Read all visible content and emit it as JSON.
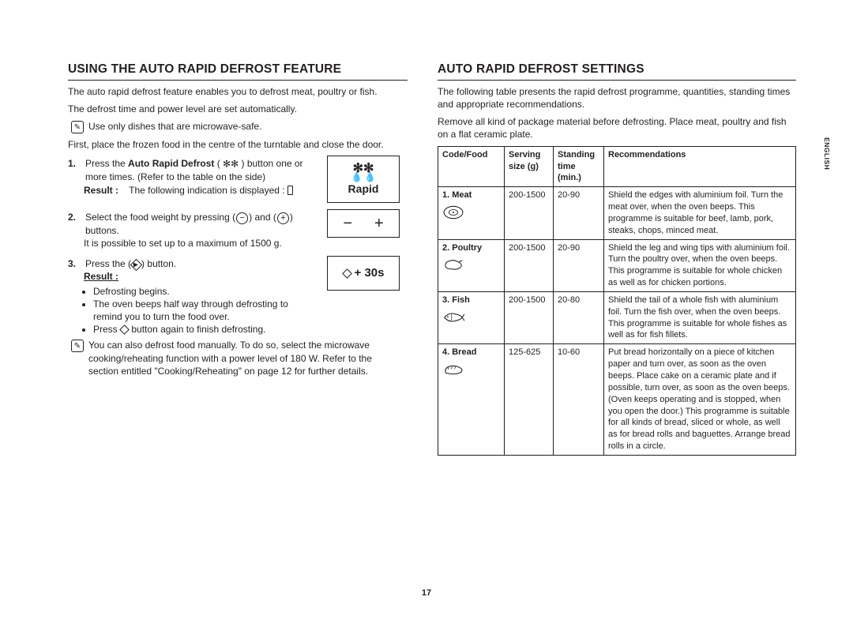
{
  "page_number": "17",
  "side_tab": "ENGLISH",
  "left": {
    "heading": "USING THE AUTO RAPID DEFROST FEATURE",
    "intro1": "The auto rapid defrost feature enables you to defrost meat, poultry or fish.",
    "intro2": "The defrost time and power level are set automatically.",
    "note1": "Use only dishes that are microwave-safe.",
    "intro3": "First, place the frozen food in the centre of the turntable and close the door.",
    "step1_a": "Press the ",
    "step1_bold": "Auto Rapid Defrost",
    "step1_b": " button one or more times. (Refer to the table on the side)",
    "result_label": "Result :",
    "step1_result": "The following indication is displayed :",
    "step2": "Select the food weight by pressing",
    "step2_and": "and",
    "step2_tail": "buttons.",
    "step2_note": "It is possible to set up to a maximum of 1500 g.",
    "step3_a": "Press the",
    "step3_b": "button.",
    "result_label2": "Result :",
    "bullets": [
      "Defrosting begins.",
      "The oven beeps half way through defrosting to remind you to turn the food over.",
      "Press"
    ],
    "bullet3_tail": "button again to finish defrosting.",
    "note2": "You can also defrost food manually. To do so, select the microwave cooking/reheating function with a power level of 180 W. Refer to the section entitled \"Cooking/Reheating\" on page 12 for further details.",
    "rapid_label": "Rapid",
    "plus30s": "+ 30s"
  },
  "right": {
    "heading": "AUTO RAPID DEFROST SETTINGS",
    "p1": "The following table presents the rapid defrost programme, quantities, standing times and appropriate recommendations.",
    "p2": "Remove all kind of package material before defrosting. Place meat, poultry and fish on a flat ceramic plate.",
    "table": {
      "headers": [
        "Code/Food",
        "Serving size (g)",
        "Standing time (min.)",
        "Recommendations"
      ],
      "rows": [
        {
          "code": "1. Meat",
          "icon": "meat",
          "serving": "200-1500",
          "standing": "20-90",
          "rec": "Shield the edges with aluminium foil. Turn the meat over, when the oven beeps. This programme is suitable for beef, lamb, pork, steaks, chops, minced meat."
        },
        {
          "code": "2. Poultry",
          "icon": "poultry",
          "serving": "200-1500",
          "standing": "20-90",
          "rec": "Shield the leg and wing tips with aluminium foil. Turn the poultry over, when the oven beeps. This programme is suitable for whole chicken as well as for chicken portions."
        },
        {
          "code": "3. Fish",
          "icon": "fish",
          "serving": "200-1500",
          "standing": "20-80",
          "rec": "Shield the tail of a whole fish with aluminium foil. Turn the fish over, when the oven beeps. This programme is suitable for whole fishes as well as for fish fillets."
        },
        {
          "code": "4. Bread",
          "icon": "bread",
          "serving": "125-625",
          "standing": "10-60",
          "rec": "Put bread horizontally on a piece of kitchen paper and turn over, as soon as the oven beeps. Place cake on a ceramic plate and if possible, turn over, as soon as the oven beeps. (Oven keeps operating and is stopped, when you open the door.) This programme is suitable for all kinds of bread, sliced or whole, as well as for bread rolls and baguettes. Arrange bread rolls in a circle."
        }
      ]
    }
  }
}
